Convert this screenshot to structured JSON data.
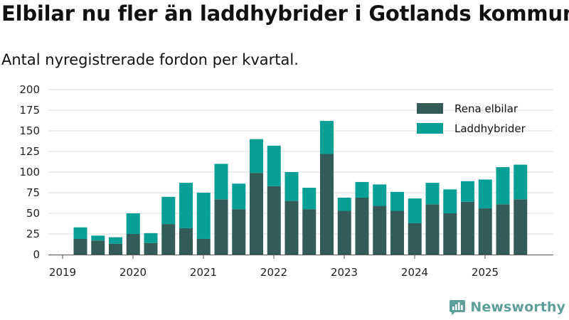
{
  "title": "Elbilar nu fler än laddhybrider i Gotlands kommun",
  "subtitle": "Antal nyregistrerade fordon per kvartal.",
  "brand": {
    "name": "Newsworthy"
  },
  "colors": {
    "elbil": "#335c59",
    "laddhybrid": "#079f96",
    "grid": "#dddddd",
    "axis": "#555555",
    "brand": "#5f9f9a"
  },
  "chart_data": {
    "type": "bar",
    "stacked": true,
    "title": "Elbilar nu fler än laddhybrider i Gotlands kommun",
    "subtitle": "Antal nyregistrerade fordon per kvartal.",
    "categories": [
      "2019 Q2",
      "2019 Q3",
      "2019 Q4",
      "2020 Q1",
      "2020 Q2",
      "2020 Q3",
      "2020 Q4",
      "2021 Q1",
      "2021 Q2",
      "2021 Q3",
      "2021 Q4",
      "2022 Q1",
      "2022 Q2",
      "2022 Q3",
      "2022 Q4",
      "2023 Q1",
      "2023 Q2",
      "2023 Q3",
      "2023 Q4",
      "2024 Q1",
      "2024 Q2",
      "2024 Q3",
      "2024 Q4",
      "2025 Q1",
      "2025 Q2",
      "2025 Q3"
    ],
    "series": [
      {
        "name": "Rena elbilar",
        "values": [
          19,
          17,
          13,
          25,
          14,
          37,
          32,
          19,
          67,
          55,
          99,
          83,
          65,
          55,
          122,
          53,
          69,
          59,
          53,
          38,
          61,
          50,
          64,
          56,
          61,
          67
        ]
      },
      {
        "name": "Laddhybrider",
        "values": [
          14,
          6,
          8,
          25,
          12,
          33,
          55,
          56,
          43,
          31,
          41,
          49,
          35,
          26,
          40,
          16,
          19,
          26,
          23,
          30,
          26,
          29,
          25,
          35,
          45,
          42
        ]
      }
    ],
    "x_ticks": [
      "2019",
      "2020",
      "2021",
      "2022",
      "2023",
      "2024",
      "2025"
    ],
    "y_ticks": [
      0,
      25,
      50,
      75,
      100,
      125,
      150,
      175,
      200
    ],
    "ylim": [
      0,
      200
    ],
    "xlabel": "",
    "ylabel": "",
    "grid": true,
    "legend_position": "top-right"
  }
}
